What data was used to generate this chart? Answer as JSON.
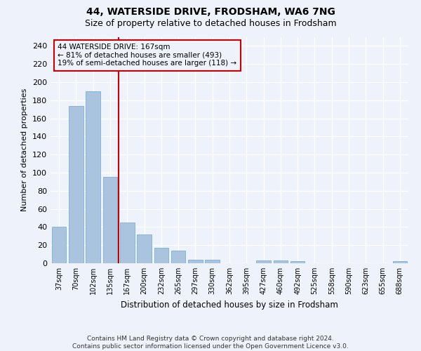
{
  "title": "44, WATERSIDE DRIVE, FRODSHAM, WA6 7NG",
  "subtitle": "Size of property relative to detached houses in Frodsham",
  "xlabel": "Distribution of detached houses by size in Frodsham",
  "ylabel": "Number of detached properties",
  "categories": [
    "37sqm",
    "70sqm",
    "102sqm",
    "135sqm",
    "167sqm",
    "200sqm",
    "232sqm",
    "265sqm",
    "297sqm",
    "330sqm",
    "362sqm",
    "395sqm",
    "427sqm",
    "460sqm",
    "492sqm",
    "525sqm",
    "558sqm",
    "590sqm",
    "623sqm",
    "655sqm",
    "688sqm"
  ],
  "values": [
    40,
    174,
    190,
    95,
    45,
    32,
    17,
    14,
    4,
    4,
    0,
    0,
    3,
    3,
    2,
    0,
    0,
    0,
    0,
    0,
    2
  ],
  "bar_color": "#aac4e0",
  "bar_edge_color": "#7aafd4",
  "property_line_idx": 4,
  "property_line_color": "#cc0000",
  "annotation_line1": "44 WATERSIDE DRIVE: 167sqm",
  "annotation_line2": "← 81% of detached houses are smaller (493)",
  "annotation_line3": "19% of semi-detached houses are larger (118) →",
  "annotation_box_color": "#cc0000",
  "ylim": [
    0,
    250
  ],
  "yticks": [
    0,
    20,
    40,
    60,
    80,
    100,
    120,
    140,
    160,
    180,
    200,
    220,
    240
  ],
  "background_color": "#eef2fb",
  "grid_color": "#ffffff",
  "title_fontsize": 10,
  "subtitle_fontsize": 9,
  "footer_line1": "Contains HM Land Registry data © Crown copyright and database right 2024.",
  "footer_line2": "Contains public sector information licensed under the Open Government Licence v3.0."
}
